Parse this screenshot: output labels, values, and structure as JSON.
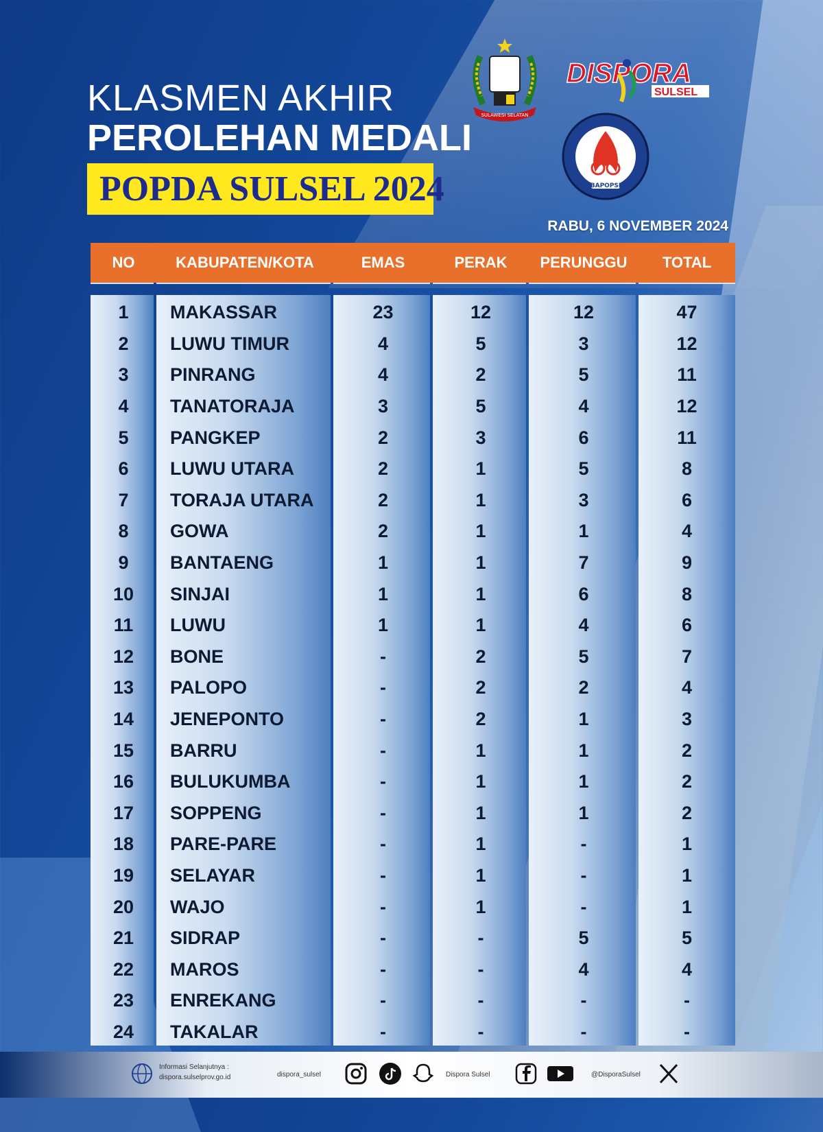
{
  "header": {
    "line1": "KLASMEN AKHIR",
    "line2": "PEROLEHAN MEDALI",
    "banner": "POPDA SULSEL 2024",
    "date": "RABU, 6 NOVEMBER 2024"
  },
  "logos": {
    "emblem_text": "SULAWESI SELATAN",
    "dispora_text": "DISPORA",
    "dispora_sub": "SULSEL",
    "bapopsi_text": "BAPOPSI"
  },
  "table": {
    "columns": [
      "NO",
      "KABUPATEN/KOTA",
      "EMAS",
      "PERAK",
      "PERUNGGU",
      "TOTAL"
    ],
    "rows": [
      [
        "1",
        "MAKASSAR",
        "23",
        "12",
        "12",
        "47"
      ],
      [
        "2",
        "LUWU TIMUR",
        "4",
        "5",
        "3",
        "12"
      ],
      [
        "3",
        "PINRANG",
        "4",
        "2",
        "5",
        "11"
      ],
      [
        "4",
        "TANATORAJA",
        "3",
        "5",
        "4",
        "12"
      ],
      [
        "5",
        "PANGKEP",
        "2",
        "3",
        "6",
        "11"
      ],
      [
        "6",
        "LUWU UTARA",
        "2",
        "1",
        "5",
        "8"
      ],
      [
        "7",
        "TORAJA UTARA",
        "2",
        "1",
        "3",
        "6"
      ],
      [
        "8",
        "GOWA",
        "2",
        "1",
        "1",
        "4"
      ],
      [
        "9",
        "BANTAENG",
        "1",
        "1",
        "7",
        "9"
      ],
      [
        "10",
        "SINJAI",
        "1",
        "1",
        "6",
        "8"
      ],
      [
        "11",
        "LUWU",
        "1",
        "1",
        "4",
        "6"
      ],
      [
        "12",
        "BONE",
        "-",
        "2",
        "5",
        "7"
      ],
      [
        "13",
        "PALOPO",
        "-",
        "2",
        "2",
        "4"
      ],
      [
        "14",
        "JENEPONTO",
        "-",
        "2",
        "1",
        "3"
      ],
      [
        "15",
        "BARRU",
        "-",
        "1",
        "1",
        "2"
      ],
      [
        "16",
        "BULUKUMBA",
        "-",
        "1",
        "1",
        "2"
      ],
      [
        "17",
        "SOPPENG",
        "-",
        "1",
        "1",
        "2"
      ],
      [
        "18",
        "PARE-PARE",
        "-",
        "1",
        "-",
        "1"
      ],
      [
        "19",
        "SELAYAR",
        "-",
        "1",
        "-",
        "1"
      ],
      [
        "20",
        "WAJO",
        "-",
        "1",
        "-",
        "1"
      ],
      [
        "21",
        "SIDRAP",
        "-",
        "-",
        "5",
        "5"
      ],
      [
        "22",
        "MAROS",
        "-",
        "-",
        "4",
        "4"
      ],
      [
        "23",
        "ENREKANG",
        "-",
        "-",
        "-",
        "-"
      ],
      [
        "24",
        "TAKALAR",
        "-",
        "-",
        "-",
        "-"
      ]
    ]
  },
  "footer": {
    "info_label": "Informasi Selanjutnya :",
    "website": "dispora.sulselprov.go.id",
    "instagram_handle": "dispora_sulsel",
    "facebook_youtube": "Dispora Sulsel",
    "x_handle": "@DisporaSulsel"
  },
  "colors": {
    "header_orange": "#e8702a",
    "banner_yellow": "#ffe91e",
    "banner_text": "#1d2c8c"
  }
}
